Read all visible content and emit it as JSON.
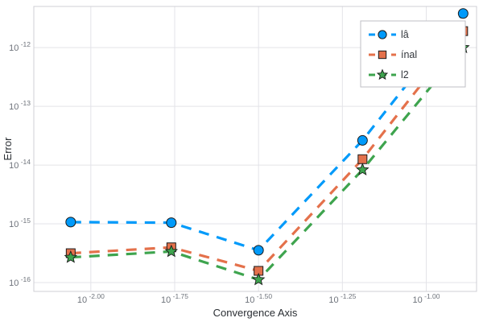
{
  "chart_data": {
    "type": "line",
    "scale": "log-log",
    "title": "",
    "xlabel": "Convergence Axis",
    "ylabel": "Error",
    "grid": true,
    "legend_position": "top-right",
    "x_exponents": [
      -2.06,
      -1.76,
      -1.5,
      -1.19,
      -0.89
    ],
    "series": [
      {
        "name": "lâ",
        "color": "#009AFA",
        "marker": "circle",
        "dash": true,
        "y_exponents": [
          -14.97,
          -14.98,
          -15.45,
          -13.58,
          -11.42
        ]
      },
      {
        "name": "ínal",
        "color": "#E4714B",
        "marker": "square",
        "dash": true,
        "y_exponents": [
          -15.5,
          -15.4,
          -15.8,
          -13.9,
          -11.72
        ]
      },
      {
        "name": "l2",
        "color": "#3EA44E",
        "marker": "star",
        "dash": true,
        "y_exponents": [
          -15.57,
          -15.47,
          -15.95,
          -14.08,
          -12.0
        ]
      }
    ],
    "xlim_exponents": [
      -2.17,
      -0.85
    ],
    "ylim_exponents": [
      -16.15,
      -11.3
    ],
    "xticks": {
      "exponents": [
        -2.0,
        -1.75,
        -1.5,
        -1.25,
        -1.0
      ],
      "labels": [
        "-2.00",
        "-1.75",
        "-1.50",
        "-1.25",
        "-1.00"
      ]
    },
    "yticks": {
      "exponents": [
        -16,
        -15,
        -14,
        -13,
        -12
      ],
      "labels": [
        "-16",
        "-15",
        "-14",
        "-13",
        "-12"
      ]
    },
    "tick_base": "10",
    "colors": {
      "grid": "#e3e3e8",
      "frame": "#cfcfd4",
      "marker_stroke": "#1a1a1a",
      "legend_border": "#bfbfc4",
      "legend_bg": "#ffffff",
      "legend_text": "#33373d"
    }
  }
}
